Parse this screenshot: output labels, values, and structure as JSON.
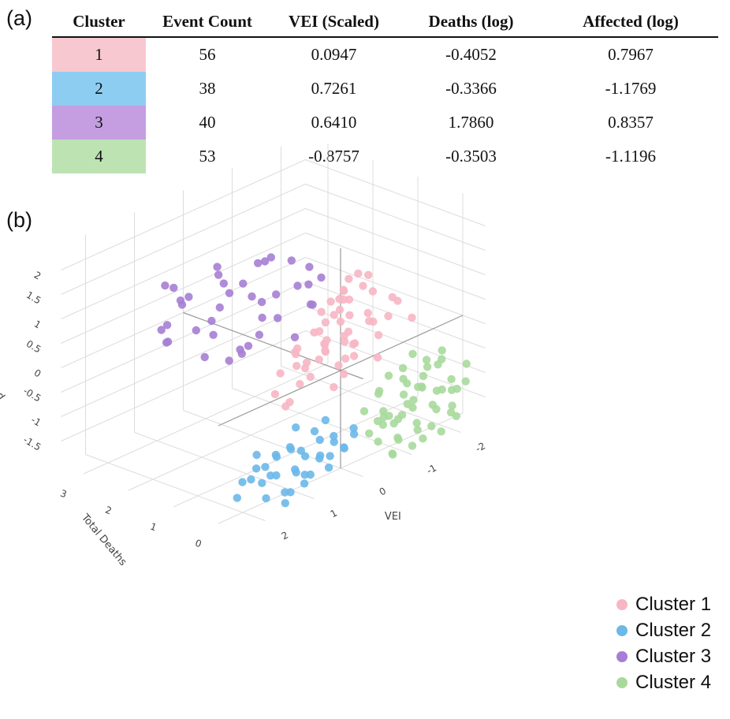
{
  "panel_labels": {
    "a": "(a)",
    "b": "(b)"
  },
  "table": {
    "headers": [
      "Cluster",
      "Event Count",
      "VEI (Scaled)",
      "Deaths (log)",
      "Affected (log)"
    ],
    "rows": [
      {
        "cluster": "1",
        "count": "56",
        "vei": "0.0947",
        "deaths": "-0.4052",
        "affected": "0.7967",
        "color": "#f8c8d0"
      },
      {
        "cluster": "2",
        "count": "38",
        "vei": "0.7261",
        "deaths": "-0.3366",
        "affected": "-1.1769",
        "color": "#8dcdf2"
      },
      {
        "cluster": "3",
        "count": "40",
        "vei": "0.6410",
        "deaths": "1.7860",
        "affected": "0.8357",
        "color": "#c49ee0"
      },
      {
        "cluster": "4",
        "count": "53",
        "vei": "-0.8757",
        "deaths": "-0.3503",
        "affected": "-1.1196",
        "color": "#bde3b3"
      }
    ]
  },
  "chart_data": {
    "type": "scatter",
    "subtype": "3d",
    "axes": {
      "x": {
        "title": "VEI",
        "ticks": [
          "-2",
          "-1",
          "0",
          "1",
          "2"
        ],
        "range": [
          -2.5,
          2.5
        ]
      },
      "y": {
        "title": "Total Deaths",
        "ticks": [
          "0",
          "1",
          "2",
          "3"
        ],
        "range": [
          -0.5,
          3.5
        ]
      },
      "z": {
        "title": "Total Affected",
        "ticks": [
          "2",
          "1.5",
          "1",
          "0.5",
          "0",
          "-0.5",
          "-1",
          "-1.5"
        ],
        "range": [
          -2,
          2.5
        ]
      }
    },
    "grid": true,
    "legend_position": "bottom-right",
    "series": [
      {
        "name": "Cluster 1",
        "color": "#f7b6c4",
        "points": [
          [
            0.1,
            -0.5,
            2.2
          ],
          [
            0.2,
            -0.4,
            2.1
          ],
          [
            0.0,
            -0.5,
            1.9
          ],
          [
            0.3,
            -0.3,
            1.7
          ],
          [
            -0.2,
            -0.4,
            2.0
          ],
          [
            0.4,
            -0.5,
            1.8
          ],
          [
            0.1,
            -0.3,
            1.6
          ],
          [
            0.2,
            -0.2,
            1.4
          ],
          [
            -0.1,
            -0.5,
            1.3
          ],
          [
            0.5,
            -0.4,
            1.5
          ],
          [
            0.0,
            -0.2,
            1.2
          ],
          [
            0.3,
            -0.5,
            1.1
          ],
          [
            0.6,
            -0.3,
            0.9
          ],
          [
            -0.3,
            -0.4,
            1.0
          ],
          [
            0.2,
            -0.5,
            0.8
          ],
          [
            0.1,
            -0.2,
            0.7
          ],
          [
            0.4,
            -0.1,
            0.6
          ],
          [
            0.7,
            -0.4,
            1.0
          ],
          [
            0.5,
            -0.5,
            0.5
          ],
          [
            0.0,
            -0.3,
            0.4
          ],
          [
            0.8,
            -0.2,
            0.3
          ],
          [
            0.3,
            -0.4,
            0.2
          ],
          [
            -0.2,
            -0.1,
            0.5
          ],
          [
            0.6,
            -0.5,
            0.1
          ],
          [
            1.0,
            -0.3,
            0.6
          ],
          [
            1.2,
            -0.4,
            0.4
          ],
          [
            -0.6,
            -0.5,
            1.4
          ],
          [
            -0.8,
            -0.4,
            1.2
          ],
          [
            1.5,
            -0.5,
            0.2
          ],
          [
            1.4,
            -0.3,
            0.0
          ],
          [
            -0.4,
            -0.2,
            0.9
          ],
          [
            0.9,
            -0.5,
            0.8
          ],
          [
            0.2,
            0.0,
            1.5
          ],
          [
            0.3,
            0.1,
            1.3
          ],
          [
            -1.0,
            -0.5,
            0.8
          ],
          [
            -0.5,
            -0.3,
            0.6
          ],
          [
            1.1,
            -0.2,
            0.9
          ],
          [
            0.7,
            0.2,
            0.7
          ],
          [
            0.0,
            0.0,
            1.0
          ],
          [
            0.4,
            -0.1,
            1.2
          ],
          [
            1.3,
            -0.4,
            1.1
          ],
          [
            -0.3,
            -0.5,
            0.3
          ],
          [
            0.6,
            0.1,
            0.4
          ],
          [
            0.8,
            -0.4,
            1.3
          ],
          [
            0.2,
            -0.3,
            0.9
          ],
          [
            -0.1,
            0.0,
            0.2
          ],
          [
            0.5,
            -0.2,
            0.7
          ],
          [
            1.0,
            -0.5,
            1.4
          ],
          [
            0.9,
            0.0,
            0.5
          ],
          [
            -0.7,
            -0.3,
            0.9
          ],
          [
            0.1,
            0.2,
            0.6
          ],
          [
            0.3,
            -0.4,
            1.9
          ],
          [
            0.4,
            -0.5,
            2.0
          ],
          [
            1.6,
            -0.4,
            0.8
          ],
          [
            1.8,
            -0.5,
            0.5
          ],
          [
            -0.2,
            -0.5,
            1.7
          ]
        ]
      },
      {
        "name": "Cluster 2",
        "color": "#6cb8ea",
        "points": [
          [
            1.2,
            -0.2,
            -1.0
          ],
          [
            1.0,
            -0.3,
            -1.2
          ],
          [
            1.4,
            -0.1,
            -1.1
          ],
          [
            0.8,
            -0.4,
            -1.3
          ],
          [
            1.6,
            -0.3,
            -0.9
          ],
          [
            0.6,
            -0.2,
            -1.4
          ],
          [
            1.1,
            -0.4,
            -1.5
          ],
          [
            0.9,
            -0.1,
            -1.2
          ],
          [
            1.3,
            -0.4,
            -1.3
          ],
          [
            0.7,
            -0.3,
            -1.0
          ],
          [
            1.5,
            -0.2,
            -1.4
          ],
          [
            0.5,
            -0.4,
            -1.1
          ],
          [
            1.8,
            -0.4,
            -1.2
          ],
          [
            2.0,
            -0.3,
            -1.0
          ],
          [
            0.4,
            -0.2,
            -1.5
          ],
          [
            1.2,
            -0.5,
            -1.6
          ],
          [
            0.3,
            -0.4,
            -1.3
          ],
          [
            1.7,
            -0.1,
            -1.5
          ],
          [
            2.2,
            -0.4,
            -1.1
          ],
          [
            0.2,
            -0.3,
            -1.4
          ],
          [
            1.9,
            -0.2,
            -0.8
          ],
          [
            0.6,
            -0.5,
            -0.9
          ],
          [
            1.0,
            -0.1,
            -1.6
          ],
          [
            1.4,
            -0.4,
            -0.8
          ],
          [
            0.8,
            -0.2,
            -1.7
          ],
          [
            2.1,
            -0.1,
            -1.3
          ],
          [
            0.1,
            -0.4,
            -1.0
          ],
          [
            1.3,
            -0.3,
            -1.8
          ],
          [
            1.6,
            -0.5,
            -1.6
          ],
          [
            0.9,
            -0.4,
            -0.7
          ],
          [
            2.3,
            -0.2,
            -1.5
          ],
          [
            0.0,
            -0.3,
            -1.2
          ],
          [
            1.1,
            -0.2,
            -0.6
          ],
          [
            1.5,
            -0.4,
            -1.9
          ],
          [
            0.4,
            -0.1,
            -0.8
          ],
          [
            1.8,
            -0.3,
            -1.7
          ],
          [
            0.7,
            -0.5,
            -1.5
          ],
          [
            2.0,
            -0.5,
            -0.9
          ]
        ]
      },
      {
        "name": "Cluster 3",
        "color": "#a67ed4",
        "points": [
          [
            0.2,
            0.8,
            0.5
          ],
          [
            0.5,
            1.2,
            0.9
          ],
          [
            -0.5,
            1.5,
            1.0
          ],
          [
            0.8,
            2.0,
            0.7
          ],
          [
            1.0,
            1.6,
            1.2
          ],
          [
            -0.3,
            2.3,
            0.6
          ],
          [
            0.4,
            1.0,
            1.4
          ],
          [
            1.3,
            1.8,
            0.8
          ],
          [
            -0.8,
            1.3,
            1.1
          ],
          [
            0.0,
            2.6,
            0.9
          ],
          [
            0.6,
            1.4,
            0.3
          ],
          [
            1.5,
            1.2,
            1.0
          ],
          [
            -0.2,
            1.9,
            1.5
          ],
          [
            0.9,
            2.4,
            1.1
          ],
          [
            0.3,
            3.2,
            0.4
          ],
          [
            -1.0,
            1.8,
            0.7
          ],
          [
            1.1,
            1.0,
            0.5
          ],
          [
            0.7,
            2.8,
            0.8
          ],
          [
            -0.6,
            2.2,
            1.3
          ],
          [
            1.6,
            2.1,
            0.6
          ],
          [
            0.1,
            1.7,
            0.2
          ],
          [
            1.2,
            2.6,
            1.4
          ],
          [
            -0.4,
            1.1,
            0.8
          ],
          [
            0.5,
            2.2,
            1.6
          ],
          [
            1.4,
            1.5,
            0.4
          ],
          [
            -1.2,
            2.0,
            0.9
          ],
          [
            0.8,
            1.3,
            1.7
          ],
          [
            0.2,
            2.5,
            1.2
          ],
          [
            -0.9,
            1.6,
            0.4
          ],
          [
            1.8,
            1.9,
            1.1
          ],
          [
            0.4,
            1.8,
            0.0
          ],
          [
            -0.1,
            1.2,
            1.8
          ],
          [
            1.0,
            2.9,
            0.3
          ],
          [
            0.6,
            1.1,
            1.3
          ],
          [
            -0.7,
            2.6,
            1.0
          ],
          [
            1.3,
            2.3,
            1.5
          ],
          [
            0.0,
            1.4,
            0.6
          ],
          [
            2.0,
            1.7,
            0.9
          ],
          [
            -0.3,
            2.8,
            0.5
          ],
          [
            0.9,
            1.5,
            0.1
          ]
        ]
      },
      {
        "name": "Cluster 4",
        "color": "#a8d99c",
        "points": [
          [
            -1.0,
            -0.4,
            -1.0
          ],
          [
            -1.2,
            -0.3,
            -1.2
          ],
          [
            -0.8,
            -0.5,
            -1.1
          ],
          [
            -1.4,
            -0.2,
            -0.9
          ],
          [
            -0.9,
            -0.3,
            -1.3
          ],
          [
            -1.6,
            -0.4,
            -1.0
          ],
          [
            -1.1,
            -0.5,
            -1.4
          ],
          [
            -0.7,
            -0.2,
            -1.2
          ],
          [
            -1.3,
            -0.4,
            -0.8
          ],
          [
            -1.5,
            -0.5,
            -1.3
          ],
          [
            -0.6,
            -0.3,
            -1.0
          ],
          [
            -1.8,
            -0.3,
            -1.1
          ],
          [
            -1.0,
            -0.1,
            -1.5
          ],
          [
            -1.2,
            -0.5,
            -0.7
          ],
          [
            -0.8,
            -0.4,
            -1.6
          ],
          [
            -1.7,
            -0.2,
            -1.4
          ],
          [
            -0.5,
            -0.4,
            -1.2
          ],
          [
            -1.9,
            -0.4,
            -0.9
          ],
          [
            -1.1,
            -0.2,
            -0.6
          ],
          [
            -1.4,
            -0.5,
            -1.6
          ],
          [
            -0.4,
            -0.2,
            -1.4
          ],
          [
            -2.0,
            -0.3,
            -1.2
          ],
          [
            -0.9,
            -0.5,
            -0.5
          ],
          [
            -1.6,
            -0.1,
            -0.8
          ],
          [
            -1.3,
            -0.3,
            -1.7
          ],
          [
            -0.3,
            -0.5,
            -1.0
          ],
          [
            -2.1,
            -0.5,
            -1.0
          ],
          [
            -1.0,
            -0.2,
            -1.8
          ],
          [
            -1.5,
            -0.3,
            -0.5
          ],
          [
            -0.7,
            -0.1,
            -0.7
          ],
          [
            -1.8,
            -0.5,
            -1.5
          ],
          [
            -0.6,
            -0.5,
            -1.8
          ],
          [
            -1.2,
            -0.1,
            -1.0
          ],
          [
            -2.2,
            -0.2,
            -1.3
          ],
          [
            -0.5,
            -0.3,
            -0.6
          ],
          [
            -1.7,
            -0.4,
            -0.4
          ],
          [
            -1.1,
            -0.4,
            -1.9
          ],
          [
            -0.8,
            -0.2,
            -0.4
          ],
          [
            -1.4,
            -0.1,
            -1.2
          ],
          [
            -2.0,
            -0.4,
            -1.7
          ],
          [
            -0.4,
            -0.4,
            -1.5
          ],
          [
            -1.9,
            -0.1,
            -0.7
          ],
          [
            -1.0,
            -0.3,
            -0.3
          ],
          [
            -1.6,
            -0.5,
            -1.8
          ],
          [
            -0.9,
            -0.1,
            -1.3
          ],
          [
            -1.3,
            -0.5,
            -0.2
          ],
          [
            -2.3,
            -0.3,
            -0.8
          ],
          [
            -0.7,
            -0.4,
            -1.9
          ],
          [
            -1.5,
            -0.2,
            -2.0
          ],
          [
            -1.2,
            -0.3,
            -0.1
          ],
          [
            -0.3,
            -0.2,
            -0.9
          ],
          [
            -2.1,
            -0.2,
            -1.6
          ],
          [
            -1.8,
            -0.3,
            -0.3
          ]
        ]
      }
    ]
  }
}
